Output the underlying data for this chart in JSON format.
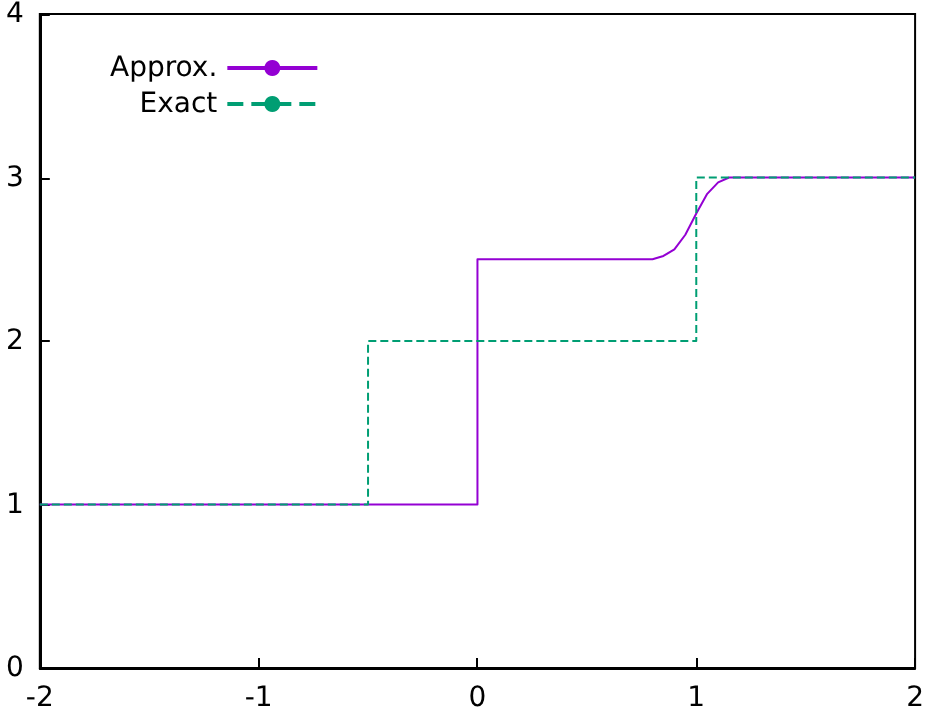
{
  "chart_data": {
    "type": "line",
    "series": [
      {
        "name": "Approx.",
        "color": "#9400d3",
        "line_style": "solid",
        "x": [
          -2,
          0,
          0,
          0.8,
          0.85,
          0.9,
          0.95,
          1.0,
          1.05,
          1.1,
          1.15,
          2
        ],
        "values": [
          1,
          1,
          2.5,
          2.5,
          2.52,
          2.56,
          2.65,
          2.78,
          2.9,
          2.97,
          3,
          3
        ]
      },
      {
        "name": "Exact",
        "color": "#009e73",
        "line_style": "dashed",
        "x": [
          -2,
          -0.5,
          -0.5,
          1,
          1,
          2
        ],
        "values": [
          1,
          1,
          2,
          2,
          3,
          3
        ]
      }
    ],
    "xlim": [
      -2,
      2
    ],
    "xticks": [
      -2,
      -1,
      0,
      1,
      2
    ],
    "ylim": [
      0,
      4
    ],
    "yticks": [
      0,
      1,
      2,
      3,
      4
    ],
    "grid": false,
    "legend": "top left",
    "marker": "none"
  }
}
